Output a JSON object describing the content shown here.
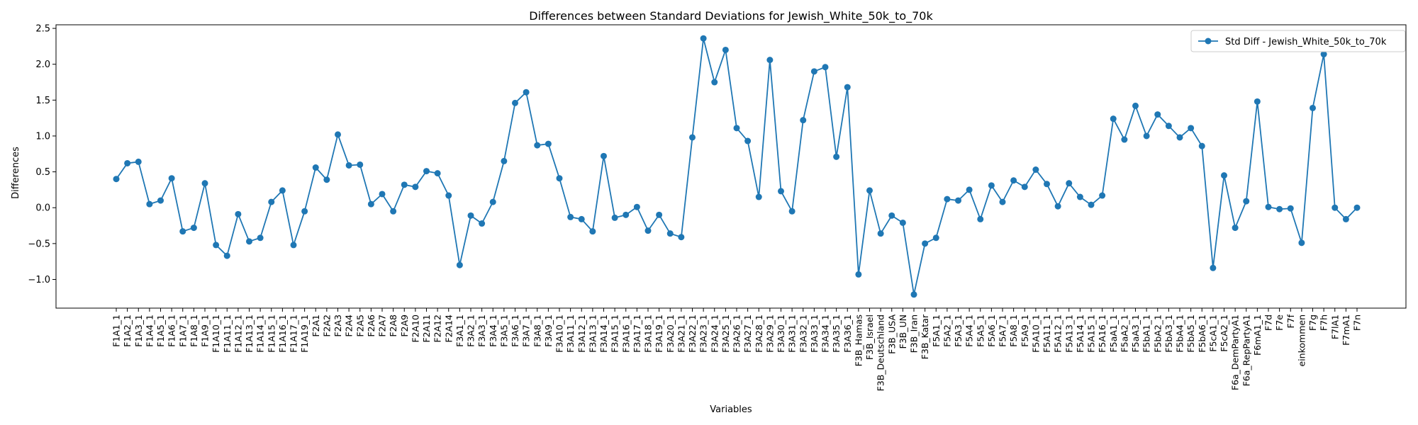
{
  "chart_data": {
    "type": "line",
    "title": "Differences between Standard Deviations for Jewish_White_50k_to_70k",
    "xlabel": "Variables",
    "ylabel": "Differences",
    "ylim": [
      -1.4,
      2.55
    ],
    "yticks": [
      -1.0,
      -0.5,
      0.0,
      0.5,
      1.0,
      1.5,
      2.0,
      2.5
    ],
    "ytick_labels": [
      "−1.0",
      "−0.5",
      "0.0",
      "0.5",
      "1.0",
      "1.5",
      "2.0",
      "2.5"
    ],
    "grid": false,
    "legend_position": "top-right",
    "colors": {
      "series": "#1f77b4",
      "axes": "#000000"
    },
    "categories": [
      "F1A1_1",
      "F1A2_1",
      "F1A3_1",
      "F1A4_1",
      "F1A5_1",
      "F1A6_1",
      "F1A7_1",
      "F1A8_1",
      "F1A9_1",
      "F1A10_1",
      "F1A11_1",
      "F1A12_1",
      "F1A13_1",
      "F1A14_1",
      "F1A15_1",
      "F1A16_1",
      "F1A17_1",
      "F1A19_1",
      "F2A1",
      "F2A2",
      "F2A3",
      "F2A4",
      "F2A5",
      "F2A6",
      "F2A7",
      "F2A8",
      "F2A9",
      "F2A10",
      "F2A11",
      "F2A12",
      "F2A14",
      "F3A1_1",
      "F3A2_1",
      "F3A3_1",
      "F3A4_1",
      "F3A5_1",
      "F3A6_1",
      "F3A7_1",
      "F3A8_1",
      "F3A9_1",
      "F3A10_1",
      "F3A11_1",
      "F3A12_1",
      "F3A13_1",
      "F3A14_1",
      "F3A15_1",
      "F3A16_1",
      "F3A17_1",
      "F3A18_1",
      "F3A19_1",
      "F3A20_1",
      "F3A21_1",
      "F3A22_1",
      "F3A23_1",
      "F3A24_1",
      "F3A25_1",
      "F3A26_1",
      "F3A27_1",
      "F3A28_1",
      "F3A29_1",
      "F3A30_1",
      "F3A31_1",
      "F3A32_1",
      "F3A33_1",
      "F3A34_1",
      "F3A35_1",
      "F3A36_1",
      "F3B_Hamas",
      "F3B_Israel",
      "F3B_Deutschland",
      "F3B_USA",
      "F3B_UN",
      "F3B_Iran",
      "F3B_Katar",
      "F5A1_1",
      "F5A2_1",
      "F5A3_1",
      "F5A4_1",
      "F5A5_1",
      "F5A6_1",
      "F5A7_1",
      "F5A8_1",
      "F5A9_1",
      "F5A10_1",
      "F5A11_1",
      "F5A12_1",
      "F5A13_1",
      "F5A14_1",
      "F5A15_1",
      "F5A16_1",
      "F5aA1_1",
      "F5aA2_1",
      "F5aA3_1",
      "F5bA1_1",
      "F5bA2_1",
      "F5bA3_1",
      "F5bA4_1",
      "F5bA5_1",
      "F5bA6_1",
      "F5cA1_1",
      "F5cA2_1",
      "F6a_DemPartyA1",
      "F6a_RepPartyA1",
      "F6mA1_1",
      "F7d",
      "F7e",
      "F7f",
      "einkommen",
      "F7g",
      "F7h",
      "F7lA1",
      "F7mA1",
      "F7n"
    ],
    "series": [
      {
        "name": "Std Diff - Jewish_White_50k_to_70k",
        "marker": "circle",
        "values": [
          0.4,
          0.62,
          0.64,
          0.05,
          0.1,
          0.41,
          -0.33,
          -0.28,
          0.34,
          -0.52,
          -0.67,
          -0.09,
          -0.47,
          -0.42,
          0.08,
          0.24,
          -0.52,
          -0.05,
          0.56,
          0.39,
          1.02,
          0.59,
          0.6,
          0.05,
          0.19,
          -0.05,
          0.32,
          0.29,
          0.51,
          0.48,
          0.17,
          -0.8,
          -0.11,
          -0.22,
          0.08,
          0.65,
          1.46,
          1.61,
          0.87,
          0.89,
          0.41,
          -0.13,
          -0.16,
          -0.33,
          0.72,
          -0.14,
          -0.1,
          0.01,
          -0.32,
          -0.1,
          -0.36,
          -0.41,
          0.98,
          2.36,
          1.75,
          2.2,
          1.11,
          0.93,
          0.15,
          2.06,
          0.23,
          -0.05,
          1.22,
          1.9,
          1.96,
          0.71,
          1.68,
          -0.93,
          0.24,
          -0.36,
          -0.11,
          -0.21,
          -1.21,
          -0.5,
          -0.42,
          0.12,
          0.1,
          0.25,
          -0.16,
          0.31,
          0.08,
          0.38,
          0.29,
          0.53,
          0.33,
          0.02,
          0.34,
          0.15,
          0.04,
          0.17,
          1.24,
          0.95,
          1.42,
          1.0,
          1.3,
          1.14,
          0.98,
          1.11,
          0.86,
          -0.84,
          0.45,
          -0.28,
          0.09,
          1.48,
          0.01,
          -0.02,
          -0.01,
          -0.49,
          1.39,
          2.14,
          0.0,
          -0.16,
          0.0
        ]
      }
    ]
  }
}
